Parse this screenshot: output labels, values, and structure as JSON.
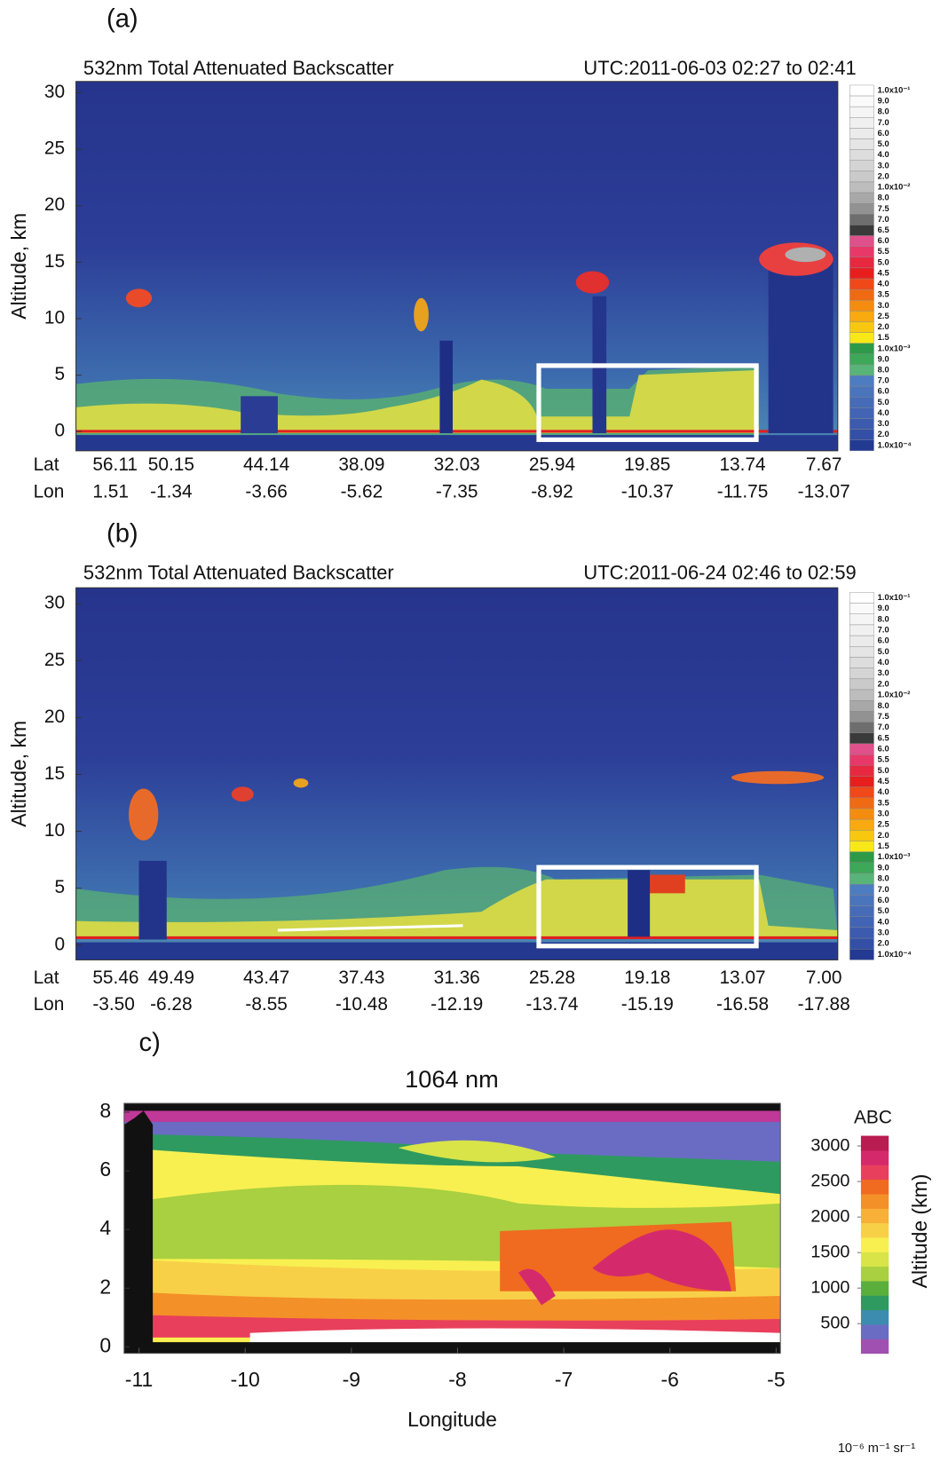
{
  "chart_data": [
    {
      "type": "heatmap",
      "label": "(a)",
      "title": "532nm Total Attenuated Backscatter",
      "subtitle": "UTC:2011-06-03 02:27 to 02:41",
      "y_label": "Altitude, km",
      "ylim": [
        -1.7,
        31
      ],
      "yticks": [
        0,
        5,
        10,
        15,
        20,
        25,
        30
      ],
      "x_rows": [
        {
          "name": "Lat",
          "labels": [
            "56.11",
            "50.15",
            "44.14",
            "38.09",
            "32.03",
            "25.94",
            "19.85",
            "13.74",
            "7.67"
          ]
        },
        {
          "name": "Lon",
          "labels": [
            "1.51",
            "-1.34",
            "-3.66",
            "-5.62",
            "-7.35",
            "-8.92",
            "-10.37",
            "-11.75",
            "-13.07"
          ]
        }
      ],
      "colorbar": {
        "labels": [
          "1.0x10⁻¹",
          "9.0",
          "8.0",
          "7.0",
          "6.0",
          "5.0",
          "4.0",
          "3.0",
          "2.0",
          "1.0x10⁻²",
          "8.0",
          "7.5",
          "7.0",
          "6.5",
          "6.0",
          "5.5",
          "5.0",
          "4.5",
          "4.0",
          "3.5",
          "3.0",
          "2.5",
          "2.0",
          "1.5",
          "1.0x10⁻³",
          "9.0",
          "8.0",
          "7.0",
          "6.0",
          "5.0",
          "4.0",
          "3.0",
          "2.0",
          "1.0x10⁻⁴"
        ],
        "colors": [
          "#ffffff",
          "#fafafa",
          "#f5f5f5",
          "#f0f0f0",
          "#ebebeb",
          "#e5e5e5",
          "#dddddd",
          "#d4d4d4",
          "#cacaca",
          "#bdbdbd",
          "#a8a8a8",
          "#929292",
          "#6e6e6e",
          "#3a3a3a",
          "#e0508a",
          "#e8386a",
          "#e82840",
          "#e81e1e",
          "#f04818",
          "#f06a14",
          "#f48c10",
          "#f8aa10",
          "#f8c810",
          "#f8e818",
          "#2e9a48",
          "#3ca858",
          "#58b478",
          "#4e7cc0",
          "#4a74bc",
          "#466cb8",
          "#4264b4",
          "#3c5aae",
          "#3450a6",
          "#223a92"
        ]
      }
    },
    {
      "type": "heatmap",
      "label": "(b)",
      "title": "532nm Total Attenuated Backscatter",
      "subtitle": "UTC:2011-06-24 02:46 to 02:59",
      "y_label": "Altitude, km",
      "ylim": [
        -1.3,
        31.4
      ],
      "yticks": [
        0,
        5,
        10,
        15,
        20,
        25,
        30
      ],
      "x_rows": [
        {
          "name": "Lat",
          "labels": [
            "55.46",
            "49.49",
            "43.47",
            "37.43",
            "31.36",
            "25.28",
            "19.18",
            "13.07",
            "7.00"
          ]
        },
        {
          "name": "Lon",
          "labels": [
            "-3.50",
            "-6.28",
            "-8.55",
            "-10.48",
            "-12.19",
            "-13.74",
            "-15.19",
            "-16.58",
            "-17.88"
          ]
        }
      ],
      "colorbar": {
        "labels": [
          "1.0x10⁻¹",
          "9.0",
          "8.0",
          "7.0",
          "6.0",
          "5.0",
          "4.0",
          "3.0",
          "2.0",
          "1.0x10⁻²",
          "8.0",
          "7.5",
          "7.0",
          "6.5",
          "6.0",
          "5.5",
          "5.0",
          "4.5",
          "4.0",
          "3.5",
          "3.0",
          "2.5",
          "2.0",
          "1.5",
          "1.0x10⁻³",
          "9.0",
          "8.0",
          "7.0",
          "6.0",
          "5.0",
          "4.0",
          "3.0",
          "2.0",
          "1.0x10⁻⁴"
        ],
        "colors": [
          "#ffffff",
          "#fafafa",
          "#f5f5f5",
          "#f0f0f0",
          "#ebebeb",
          "#e5e5e5",
          "#dddddd",
          "#d4d4d4",
          "#cacaca",
          "#bdbdbd",
          "#a8a8a8",
          "#929292",
          "#6e6e6e",
          "#3a3a3a",
          "#e0508a",
          "#e8386a",
          "#e82840",
          "#e81e1e",
          "#f04818",
          "#f06a14",
          "#f48c10",
          "#f8aa10",
          "#f8c810",
          "#f8e818",
          "#2e9a48",
          "#3ca858",
          "#58b478",
          "#4e7cc0",
          "#4a74bc",
          "#466cb8",
          "#4264b4",
          "#3c5aae",
          "#3450a6",
          "#223a92"
        ]
      }
    },
    {
      "type": "heatmap",
      "label": "c)",
      "title": "1064 nm",
      "x_label": "Longitude",
      "xlim": [
        -11.14,
        -4.96
      ],
      "xticks": [
        -11,
        -10,
        -9,
        -8,
        -7,
        -6,
        -5
      ],
      "ylim": [
        -0.22,
        8.3
      ],
      "yticks": [
        0,
        2,
        4,
        6,
        8
      ],
      "colorbar": {
        "title": "ABC",
        "label": "Altitude (km)",
        "units": "10⁻⁶ m⁻¹ sr⁻¹",
        "clim": [
          83,
          3143
        ],
        "ticks": [
          500,
          1000,
          1500,
          2000,
          2500,
          3000
        ],
        "colors": [
          "#a050b0",
          "#6a6cc4",
          "#3c8cb0",
          "#2e9a60",
          "#5aae3c",
          "#a8d040",
          "#d8e448",
          "#f8f050",
          "#f8d048",
          "#f8b038",
          "#f49028",
          "#f06a20",
          "#e8405c",
          "#d42a6c",
          "#b81c50"
        ]
      }
    }
  ]
}
